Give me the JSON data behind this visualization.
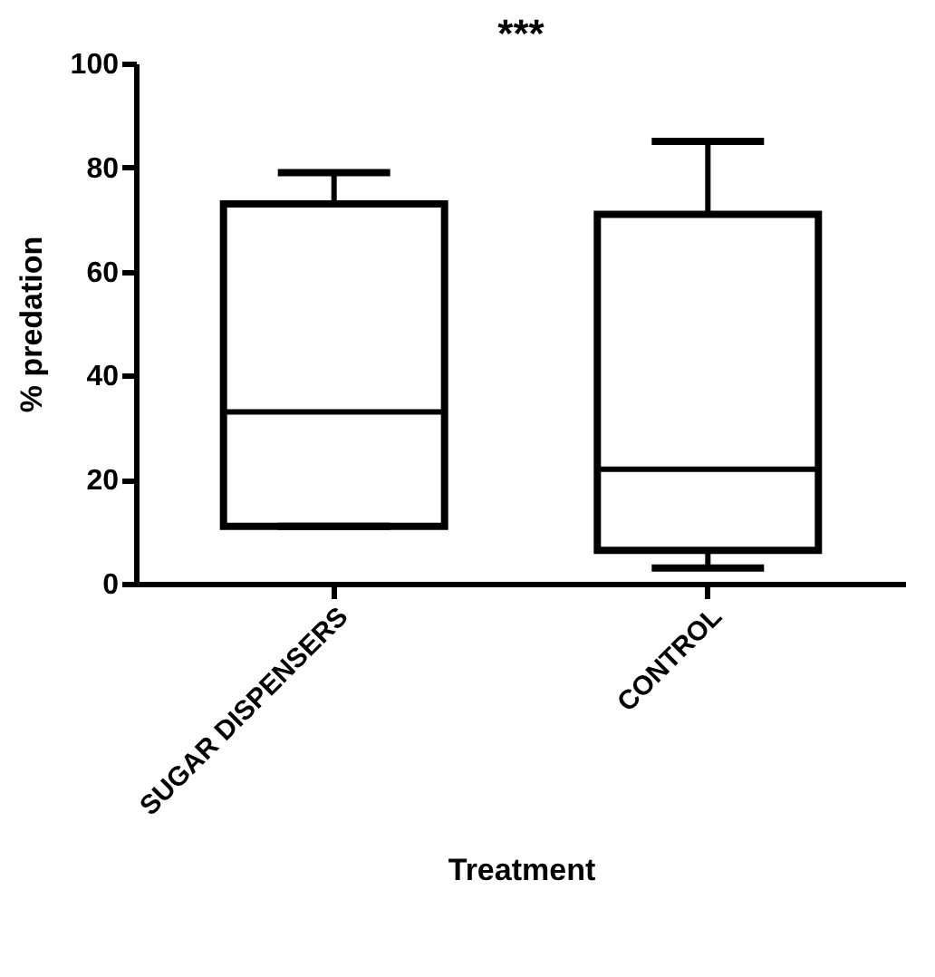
{
  "chart_data": {
    "type": "box",
    "xlabel": "Treatment",
    "ylabel": "% predation",
    "categories": [
      "SUGAR DISPENSERS",
      "CONTROL"
    ],
    "boxes": [
      {
        "low": 11,
        "q1": 11,
        "median": 33,
        "q3": 73,
        "high": 79
      },
      {
        "low": 3,
        "q1": 6.4,
        "median": 22,
        "q3": 71,
        "high": 85
      }
    ],
    "ylim": [
      0,
      100
    ],
    "yticks": [
      0,
      20,
      40,
      60,
      80,
      100
    ],
    "grid": false,
    "annotations": [
      "***"
    ]
  }
}
